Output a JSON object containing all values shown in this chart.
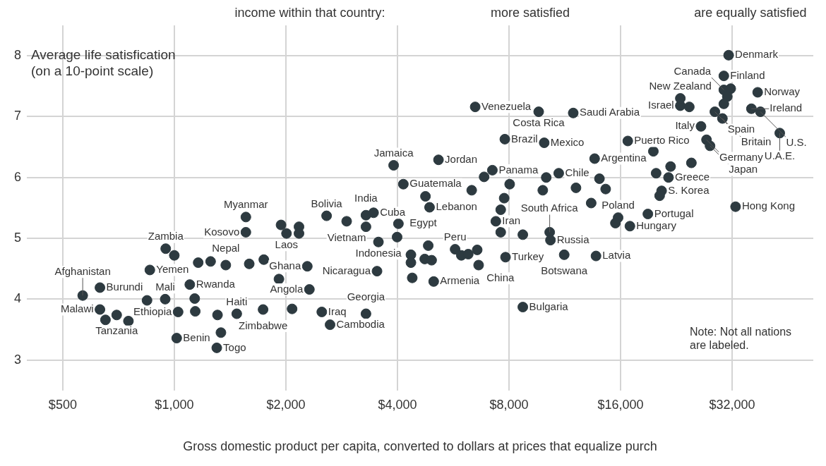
{
  "chart_data": {
    "type": "scatter",
    "xlabel": "Gross domestic product per capita, converted to dollars at prices that equalize purch",
    "ylabel": "Average life satisfication (on a 10-point scale)",
    "color": "#2d3a40",
    "marker": "circle",
    "log": "x",
    "grid": true,
    "xlim": [
      400,
      53000
    ],
    "xticks": [
      {
        "value": 500,
        "label": "$500"
      },
      {
        "value": 1000,
        "label": "$1,000"
      },
      {
        "value": 2000,
        "label": "$2,000"
      },
      {
        "value": 4000,
        "label": "$4,000"
      },
      {
        "value": 8000,
        "label": "$8,000"
      },
      {
        "value": 16000,
        "label": "$16,000"
      },
      {
        "value": 32000,
        "label": "$32,000"
      }
    ],
    "ylim": [
      2.5,
      8.5
    ],
    "yticks": [
      3,
      4,
      5,
      6,
      7,
      8
    ],
    "x": [
      566,
      630,
      630,
      652,
      699,
      752,
      859,
      948,
      1000,
      945,
      844,
      1101,
      1135,
      1024,
      1139,
      1015,
      1302,
      1336,
      1308,
      1474,
      1736,
      2079,
      1160,
      1253,
      1377,
      1593,
      1744,
      1916,
      1560,
      1560,
      2008,
      1941,
      2170,
      2170,
      2576,
      2918,
      3290,
      3449,
      3290,
      4025,
      3555,
      3992,
      3524,
      3907,
      4150,
      5163,
      4761,
      4884,
      4844,
      5724,
      4350,
      4350,
      4740,
      4947,
      5950,
      6212,
      6567,
      5011,
      4386,
      6625,
      7830,
      8719,
      7373,
      7600,
      7765,
      8034,
      7600,
      7216,
      6855,
      6346,
      7797,
      6485,
      9622,
      11926,
      9958,
      13621,
      10898,
      10084,
      9870,
      10303,
      10351,
      8719,
      11276,
      13737,
      12131,
      14036,
      14588,
      13333,
      15760,
      15498,
      16960,
      16737,
      18960,
      21557,
      20652,
      20400,
      19961,
      21837,
      24850,
      19620,
      26380,
      28750,
      30130,
      23200,
      23200,
      24530,
      30400,
      31320,
      30400,
      31730,
      31060,
      30400,
      37510,
      36080,
      38160,
      43030,
      27300,
      27900,
      32700,
      2500,
      2632,
      3290,
      2285,
      2315
    ],
    "values": [
      4.06,
      4.19,
      3.83,
      3.66,
      3.74,
      3.64,
      4.48,
      4.83,
      4.72,
      4.0,
      3.98,
      4.24,
      4.01,
      3.79,
      3.8,
      3.36,
      3.2,
      3.45,
      3.74,
      3.76,
      3.83,
      3.84,
      4.6,
      4.62,
      4.56,
      4.58,
      4.65,
      4.33,
      5.35,
      5.1,
      5.08,
      5.22,
      5.19,
      5.08,
      5.37,
      5.28,
      5.38,
      5.42,
      5.19,
      5.24,
      4.94,
      5.02,
      4.46,
      6.2,
      5.89,
      6.29,
      5.69,
      5.51,
      4.88,
      4.82,
      4.73,
      4.6,
      4.66,
      4.64,
      4.72,
      4.74,
      4.81,
      4.29,
      4.35,
      4.56,
      4.69,
      3.87,
      5.28,
      5.47,
      5.66,
      5.89,
      5.1,
      6.12,
      6.01,
      5.79,
      6.63,
      7.16,
      7.08,
      7.06,
      6.57,
      6.31,
      6.07,
      6.0,
      5.79,
      5.1,
      4.97,
      5.06,
      4.73,
      4.71,
      5.83,
      5.98,
      5.81,
      5.58,
      5.34,
      5.25,
      5.2,
      6.6,
      5.4,
      6.0,
      5.78,
      5.7,
      6.07,
      6.18,
      6.24,
      6.43,
      6.84,
      7.08,
      6.97,
      7.18,
      7.3,
      7.16,
      7.67,
      8.01,
      7.44,
      7.46,
      7.33,
      7.21,
      7.4,
      7.13,
      7.08,
      6.73,
      6.62,
      6.52,
      5.52,
      3.79,
      3.58,
      3.76,
      4.54,
      4.16
    ],
    "annotations": [
      "income within that country:",
      "more satisfied",
      "are equally satisfied",
      "Note: Not all nations are labeled.",
      {
        "text": "Afghanistan",
        "x": 566,
        "y": 4.06
      },
      {
        "text": "Burundi",
        "x": 630,
        "y": 4.19
      },
      {
        "text": "Malawi",
        "x": 630,
        "y": 3.83
      },
      {
        "text": "Tanzania",
        "x": 699,
        "y": 3.74
      },
      {
        "text": "Yemen",
        "x": 859,
        "y": 4.48
      },
      {
        "text": "Zambia",
        "x": 948,
        "y": 4.83
      },
      {
        "text": "Mali",
        "x": 945,
        "y": 4.0
      },
      {
        "text": "Rwanda",
        "x": 1101,
        "y": 4.24
      },
      {
        "text": "Ethiopia",
        "x": 1024,
        "y": 3.79
      },
      {
        "text": "Benin",
        "x": 1015,
        "y": 3.36
      },
      {
        "text": "Togo",
        "x": 1302,
        "y": 3.2
      },
      {
        "text": "Haiti",
        "x": 1474,
        "y": 3.76
      },
      {
        "text": "Zimbabwe",
        "x": 1736,
        "y": 3.83
      },
      {
        "text": "Nepal",
        "x": 1377,
        "y": 4.56
      },
      {
        "text": "Myanmar",
        "x": 1560,
        "y": 5.35
      },
      {
        "text": "Kosovo",
        "x": 1560,
        "y": 5.1
      },
      {
        "text": "Laos",
        "x": 2008,
        "y": 5.08
      },
      {
        "text": "Bolivia",
        "x": 2576,
        "y": 5.37
      },
      {
        "text": "Vietnam",
        "x": 2918,
        "y": 5.28
      },
      {
        "text": "India",
        "x": 3290,
        "y": 5.38
      },
      {
        "text": "Cuba",
        "x": 3449,
        "y": 5.42
      },
      {
        "text": "Egypt",
        "x": 4025,
        "y": 5.24
      },
      {
        "text": "Indonesia",
        "x": 3555,
        "y": 4.94
      },
      {
        "text": "Nicaragua",
        "x": 3524,
        "y": 4.46
      },
      {
        "text": "Jamaica",
        "x": 3907,
        "y": 6.2
      },
      {
        "text": "Guatemala",
        "x": 4150,
        "y": 5.89
      },
      {
        "text": "Jordan",
        "x": 5163,
        "y": 6.29
      },
      {
        "text": "Lebanon",
        "x": 4884,
        "y": 5.51
      },
      {
        "text": "Peru",
        "x": 5724,
        "y": 4.82
      },
      {
        "text": "Armenia",
        "x": 5011,
        "y": 4.29
      },
      {
        "text": "China",
        "x": 6625,
        "y": 4.56
      },
      {
        "text": "Turkey",
        "x": 7830,
        "y": 4.69
      },
      {
        "text": "Bulgaria",
        "x": 8719,
        "y": 3.87
      },
      {
        "text": "Iran",
        "x": 7373,
        "y": 5.28
      },
      {
        "text": "Panama",
        "x": 7216,
        "y": 6.12
      },
      {
        "text": "Brazil",
        "x": 7797,
        "y": 6.63
      },
      {
        "text": "Venezuela",
        "x": 6485,
        "y": 7.16
      },
      {
        "text": "Costa Rica",
        "x": 9622,
        "y": 7.08
      },
      {
        "text": "Saudi Arabia",
        "x": 11926,
        "y": 7.06
      },
      {
        "text": "Mexico",
        "x": 9958,
        "y": 6.57
      },
      {
        "text": "Argentina",
        "x": 13621,
        "y": 6.31
      },
      {
        "text": "Chile",
        "x": 10898,
        "y": 6.07
      },
      {
        "text": "South Africa",
        "x": 10303,
        "y": 5.1
      },
      {
        "text": "Russia",
        "x": 10351,
        "y": 4.97
      },
      {
        "text": "Botswana",
        "x": 11276,
        "y": 4.73
      },
      {
        "text": "Latvia",
        "x": 13737,
        "y": 4.71
      },
      {
        "text": "Poland",
        "x": 15760,
        "y": 5.34
      },
      {
        "text": "Hungary",
        "x": 16960,
        "y": 5.2
      },
      {
        "text": "Puerto Rico",
        "x": 16737,
        "y": 6.6
      },
      {
        "text": "Portugal",
        "x": 18960,
        "y": 5.4
      },
      {
        "text": "Greece",
        "x": 21557,
        "y": 6.0
      },
      {
        "text": "S. Korea",
        "x": 20652,
        "y": 5.78
      },
      {
        "text": "Italy",
        "x": 26380,
        "y": 6.84
      },
      {
        "text": "Spain",
        "x": 28750,
        "y": 7.08
      },
      {
        "text": "Britain",
        "x": 30130,
        "y": 6.97
      },
      {
        "text": "Israel",
        "x": 23200,
        "y": 7.18
      },
      {
        "text": "New Zealand",
        "x": 23200,
        "y": 7.3
      },
      {
        "text": "Finland",
        "x": 30400,
        "y": 7.67
      },
      {
        "text": "Denmark",
        "x": 31320,
        "y": 8.01
      },
      {
        "text": "Canada",
        "x": 30400,
        "y": 7.44
      },
      {
        "text": "Norway",
        "x": 37510,
        "y": 7.4
      },
      {
        "text": "Ireland",
        "x": 36080,
        "y": 7.13
      },
      {
        "text": "U.S.",
        "x": 38160,
        "y": 7.08
      },
      {
        "text": "U.A.E.",
        "x": 43030,
        "y": 6.73
      },
      {
        "text": "Germany",
        "x": 27300,
        "y": 6.62
      },
      {
        "text": "Japan",
        "x": 27900,
        "y": 6.52
      },
      {
        "text": "Hong Kong",
        "x": 32700,
        "y": 5.52
      },
      {
        "text": "Iraq",
        "x": 2500,
        "y": 3.79
      },
      {
        "text": "Cambodia",
        "x": 2632,
        "y": 3.58
      },
      {
        "text": "Georgia",
        "x": 3290,
        "y": 3.76
      },
      {
        "text": "Ghana",
        "x": 2285,
        "y": 4.54
      },
      {
        "text": "Angola",
        "x": 2315,
        "y": 4.16
      }
    ]
  }
}
